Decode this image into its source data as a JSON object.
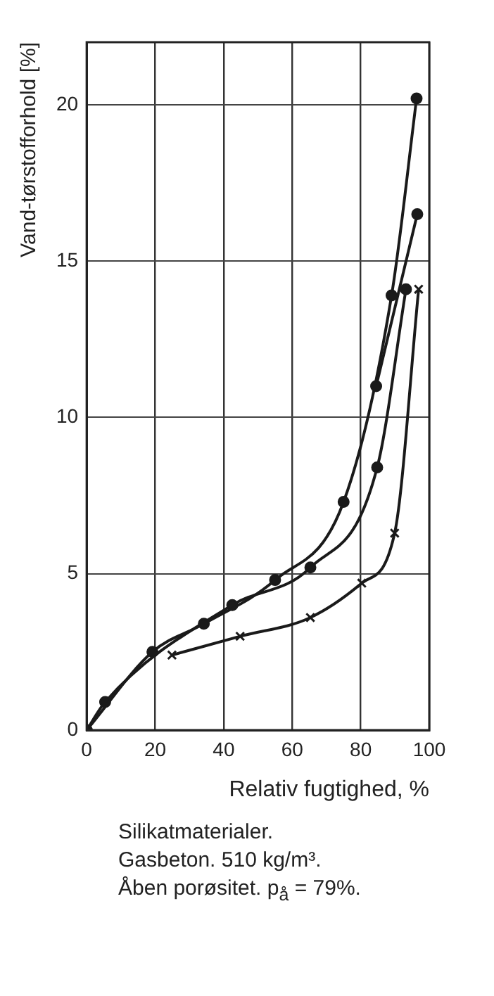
{
  "chart_data": {
    "type": "line",
    "xlabel": "Relativ fugtighed, %",
    "ylabel": "Vand-tørstofforhold [%]",
    "xlim": [
      0,
      100
    ],
    "xticks": [
      0,
      20,
      40,
      60,
      80,
      100
    ],
    "ylim": [
      0,
      22
    ],
    "yticks": [
      0,
      5,
      10,
      15,
      20
    ],
    "grid": true,
    "legend": false,
    "line_style": "solid",
    "series": [
      {
        "color": "#1a1a1a",
        "marker": "circle",
        "x": [
          0,
          19.2,
          34.2,
          55,
          75,
          89,
          96.3
        ],
        "values": [
          0,
          2.5,
          3.4,
          4.8,
          7.3,
          13.9,
          20.2
        ]
      },
      {
        "color": "#1a1a1a",
        "marker": "circle",
        "x": [
          0,
          5.4,
          42.5,
          65.3,
          84.8,
          93.2
        ],
        "values": [
          0,
          0.9,
          4.0,
          5.2,
          8.4,
          14.1
        ]
      },
      {
        "color": "#1a1a1a",
        "marker": "circle",
        "x": [
          84.5,
          96.5
        ],
        "values": [
          11.0,
          16.5
        ]
      },
      {
        "color": "#1a1a1a",
        "marker": "cross",
        "x": [
          24.9,
          44.8,
          65.3,
          80.3,
          89.9,
          96.9
        ],
        "values": [
          2.4,
          3.0,
          3.6,
          4.7,
          6.3,
          14.1
        ]
      }
    ],
    "annotations": [
      "Silikatmaterialer.",
      "Gasbeton. 510 kg/m³.",
      "Åben porøsitet. p$_{å}$ = 79%."
    ]
  }
}
